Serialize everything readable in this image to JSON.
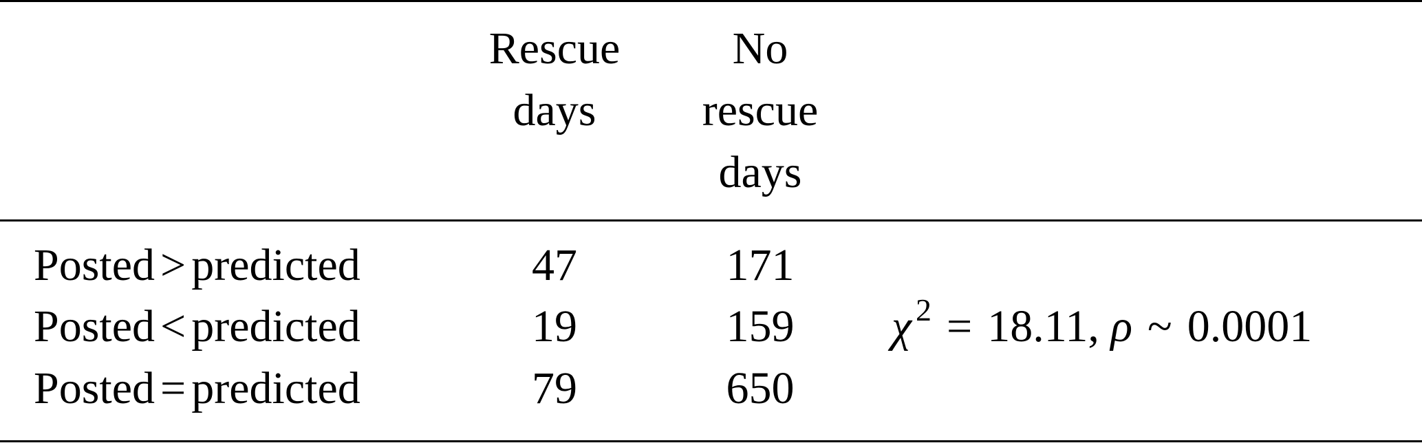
{
  "table": {
    "columns": [
      {
        "label": "Rescue\ndays"
      },
      {
        "label": "No\nrescue\ndays"
      }
    ],
    "rows": [
      {
        "left": "Posted",
        "relation": ">",
        "right": "predicted",
        "rescue": "47",
        "no_rescue": "171"
      },
      {
        "left": "Posted",
        "relation": "<",
        "right": "predicted",
        "rescue": "19",
        "no_rescue": "159"
      },
      {
        "left": "Posted",
        "relation": "=",
        "right": "predicted",
        "rescue": "79",
        "no_rescue": "650"
      }
    ],
    "statistic": {
      "chi_symbol": "χ",
      "chi_exponent": "2",
      "equals": "=",
      "chi_value": "18.11,",
      "p_symbol": "ρ",
      "approx": "~",
      "p_value": "0.0001"
    }
  }
}
